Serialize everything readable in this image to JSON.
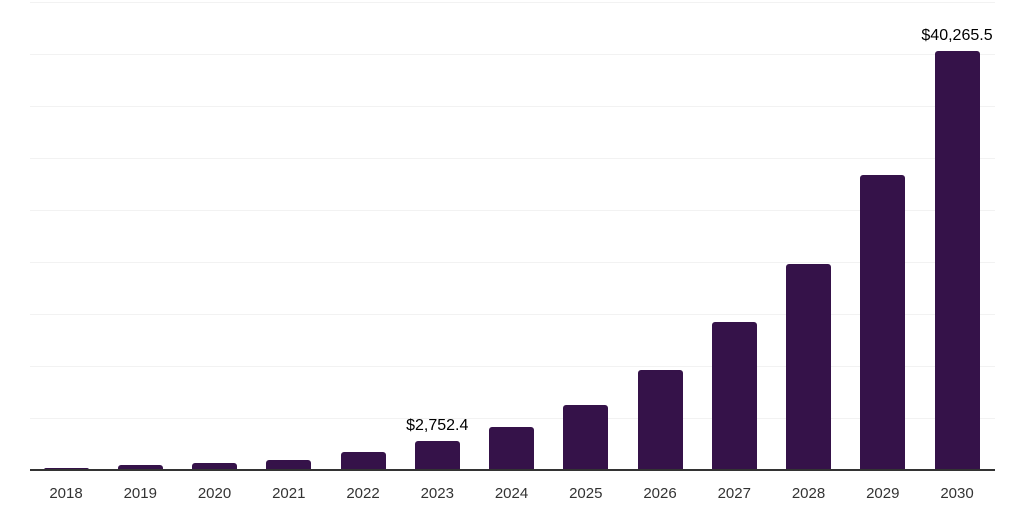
{
  "chart_data": {
    "type": "bar",
    "title": "",
    "xlabel": "",
    "ylabel": "",
    "categories": [
      "2018",
      "2019",
      "2020",
      "2021",
      "2022",
      "2023",
      "2024",
      "2025",
      "2026",
      "2027",
      "2028",
      "2029",
      "2030"
    ],
    "values": [
      190,
      480,
      670,
      960,
      1730,
      2752.4,
      4130,
      6280,
      9620,
      14230,
      19810,
      28400,
      40265.5
    ],
    "ylim": [
      0,
      45000
    ],
    "gridline_step": 5000,
    "grid": true,
    "legend_position": "none",
    "annotations": [
      {
        "category": "2023",
        "text": "$2,752.4"
      },
      {
        "category": "2030",
        "text": "$40,265.5"
      }
    ],
    "colors": {
      "bar": "#351249",
      "gridline": "#f2f2f2",
      "axis_line": "#333333",
      "x_label": "#333333",
      "value_label": "#000000",
      "background": "#ffffff"
    }
  }
}
